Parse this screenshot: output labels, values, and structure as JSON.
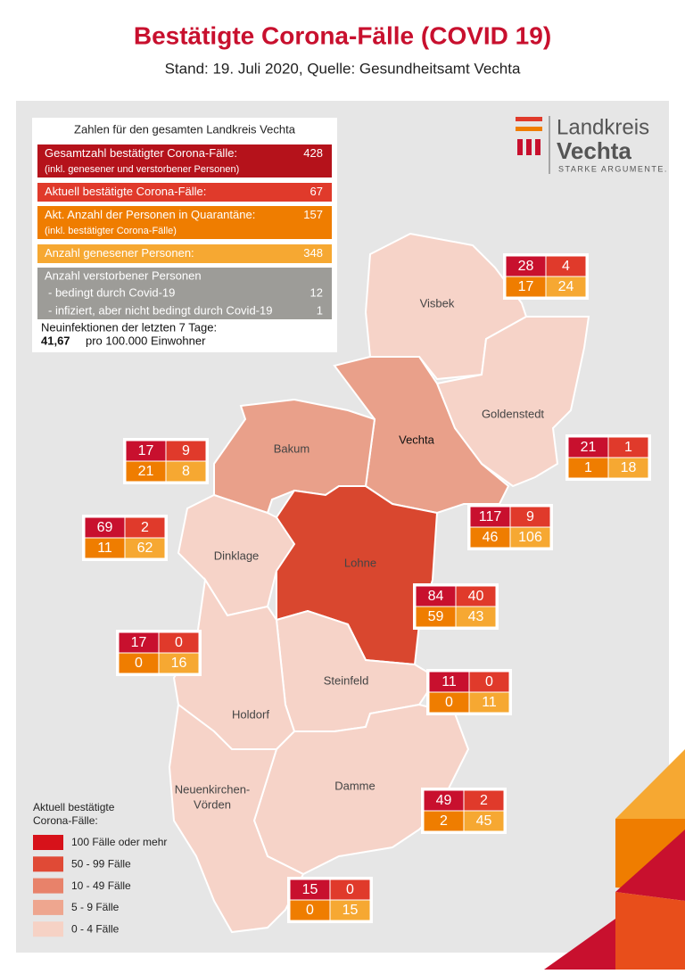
{
  "header": {
    "title": "Bestätigte Corona-Fälle (COVID 19)",
    "subtitle": "Stand: 19. Juli 2020, Quelle: Gesundheitsamt Vechta"
  },
  "summary": {
    "heading": "Zahlen für den gesamten Landkreis Vechta",
    "rows": [
      {
        "label": "Gesamtzahl bestätigter Corona-Fälle:",
        "note": "(inkl. genesener und verstorbener Personen)",
        "value": 428
      },
      {
        "label": "Aktuell bestätigte Corona-Fälle:",
        "value": 67
      },
      {
        "label": "Akt. Anzahl der Personen in Quarantäne:",
        "note": "(inkl. bestätigter Corona-Fälle)",
        "value": 157
      },
      {
        "label": "Anzahl genesener Personen:",
        "value": 348
      }
    ],
    "deceased": {
      "label": "Anzahl verstorbener Personen",
      "items": [
        {
          "label": "- bedingt durch Covid-19",
          "value": 12
        },
        {
          "label": "- infiziert, aber nicht bedingt durch Covid-19",
          "value": 1
        }
      ]
    },
    "incidence": {
      "label": "Neuinfektionen der letzten 7 Tage:",
      "value": "41,67",
      "unit": "pro 100.000 Einwohner"
    }
  },
  "logo": {
    "line1": "Landkreis",
    "line2": "Vechta",
    "slogan": "STARKE ARGUMENTE."
  },
  "municipalities": [
    {
      "label_lines": [
        "Visbek"
      ],
      "total": 28,
      "current": 4,
      "quarantine": 17,
      "recovered": 24
    },
    {
      "label_lines": [
        "Goldenstedt"
      ],
      "total": 21,
      "current": 1,
      "quarantine": 1,
      "recovered": 18
    },
    {
      "label_lines": [
        "Bakum"
      ],
      "total": 17,
      "current": 9,
      "quarantine": 21,
      "recovered": 8
    },
    {
      "label_lines": [
        "Vechta"
      ],
      "total": 117,
      "current": 9,
      "quarantine": 46,
      "recovered": 106
    },
    {
      "label_lines": [
        "Dinklage"
      ],
      "total": 69,
      "current": 2,
      "quarantine": 11,
      "recovered": 62
    },
    {
      "label_lines": [
        "Lohne"
      ],
      "total": 84,
      "current": 40,
      "quarantine": 59,
      "recovered": 43
    },
    {
      "label_lines": [
        "Holdorf"
      ],
      "total": 17,
      "current": 0,
      "quarantine": 0,
      "recovered": 16
    },
    {
      "label_lines": [
        "Steinfeld"
      ],
      "total": 11,
      "current": 0,
      "quarantine": 0,
      "recovered": 11
    },
    {
      "label_lines": [
        "Damme"
      ],
      "total": 49,
      "current": 2,
      "quarantine": 2,
      "recovered": 45
    },
    {
      "label_lines": [
        "Neuenkirchen-",
        "Vörden"
      ],
      "total": 15,
      "current": 0,
      "quarantine": 0,
      "recovered": 15
    }
  ],
  "legend": {
    "title_lines": [
      "Aktuell bestätigte",
      "Corona-Fälle:"
    ],
    "items": [
      {
        "label": "100 Fälle oder mehr",
        "color": "#d7121a"
      },
      {
        "label": "50 - 99 Fälle",
        "color": "#e04a36"
      },
      {
        "label": "10 - 49 Fälle",
        "color": "#e8826a"
      },
      {
        "label": "5 - 9 Fälle",
        "color": "#eea68f"
      },
      {
        "label": "0 - 4 Fälle",
        "color": "#f6d2c5"
      }
    ]
  }
}
